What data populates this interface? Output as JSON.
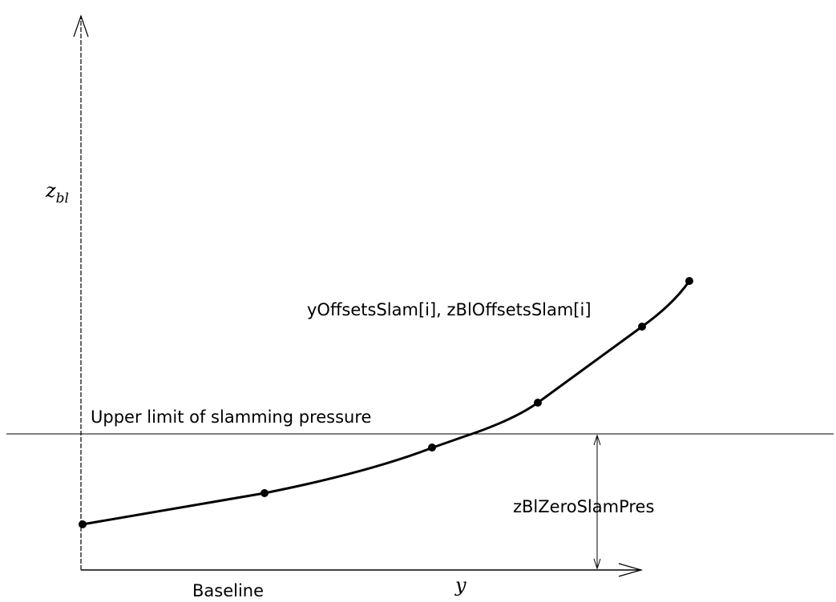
{
  "labels": {
    "z_axis_main": "z",
    "z_axis_sub": "bl",
    "y_axis": "y",
    "baseline": "Baseline",
    "upper_limit": "Upper limit of slamming pressure",
    "points_label": "yOffsetsSlam[i], zBlOffsetsSlam[i]",
    "dimension": "zBlZeroSlamPres"
  }
}
